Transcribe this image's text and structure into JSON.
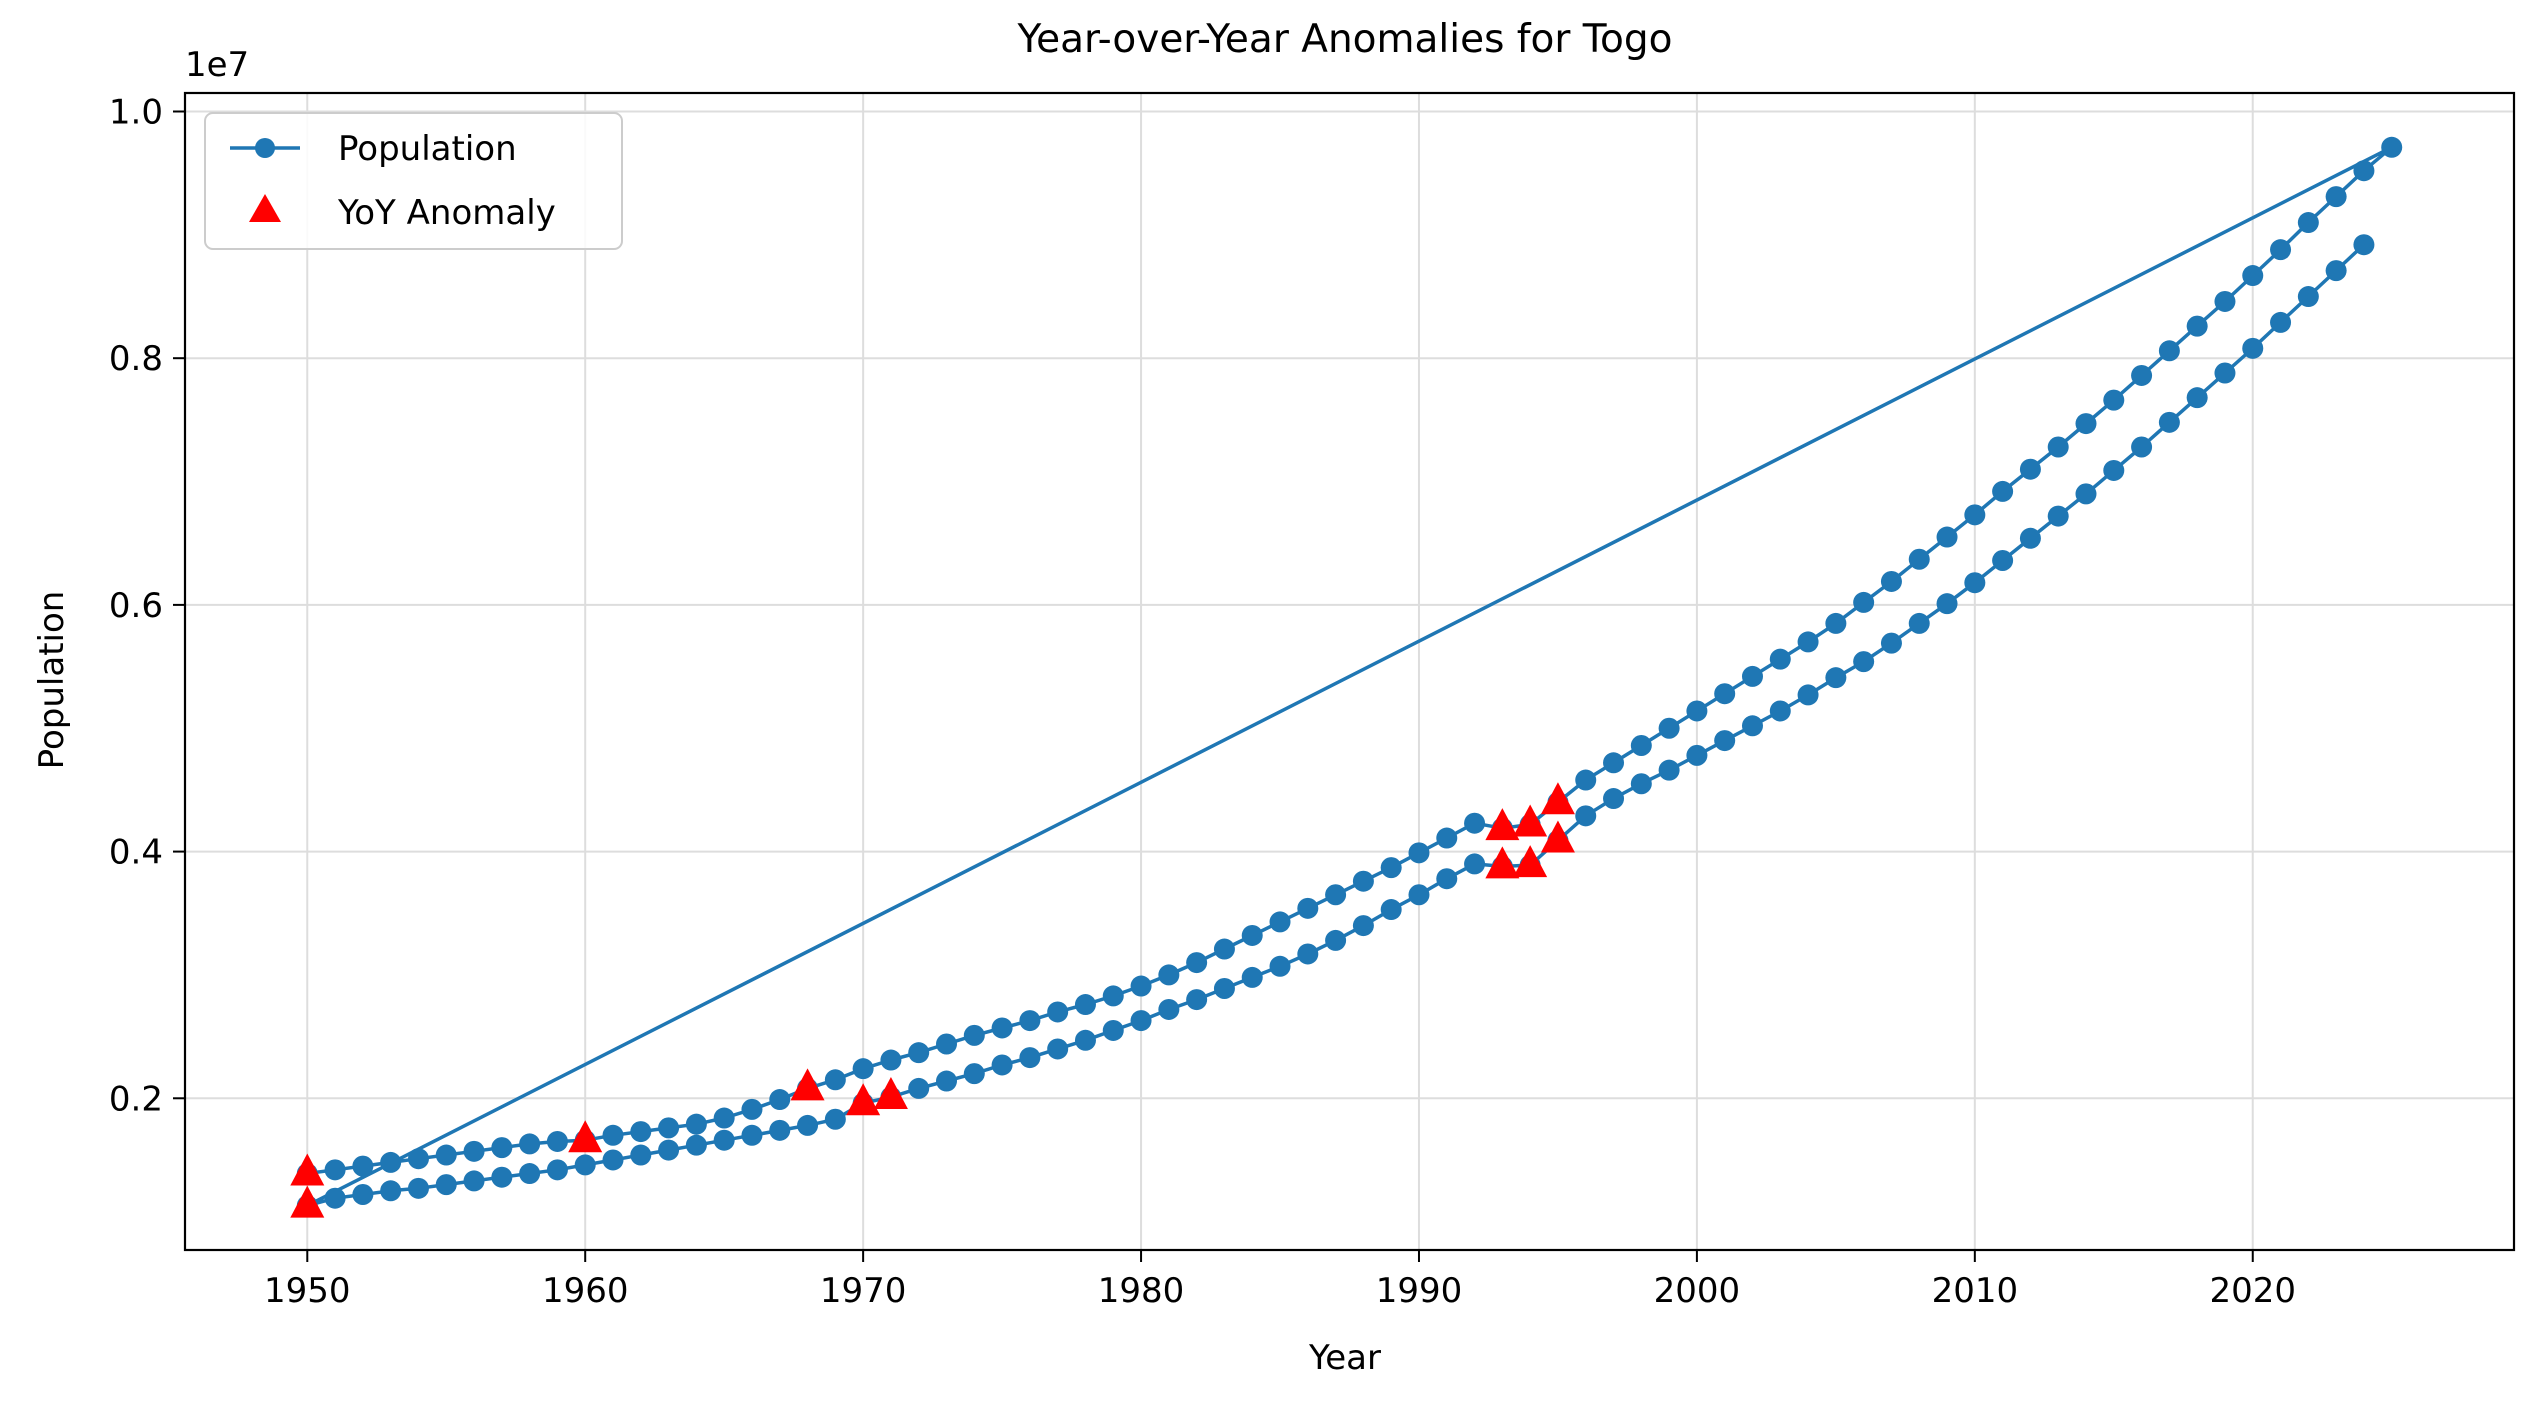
{
  "chart_data": {
    "type": "line",
    "title": "Year-over-Year Anomalies for Togo",
    "xlabel": "Year",
    "ylabel": "Population",
    "y_offset_label": "1e7",
    "xlim": [
      1945.6,
      2029.4
    ],
    "ylim": [
      770000,
      10150000
    ],
    "xticks": [
      1950,
      1960,
      1970,
      1980,
      1990,
      2000,
      2010,
      2020
    ],
    "yticks": [
      2000000,
      4000000,
      6000000,
      8000000,
      10000000
    ],
    "ytick_labels": [
      "0.2",
      "0.4",
      "0.6",
      "0.8",
      "1.0"
    ],
    "grid": true,
    "legend_position": "upper-left",
    "series": [
      {
        "name": "Population",
        "kind": "line-with-markers",
        "color": "#1f77b4",
        "x": [
          1950,
          1951,
          1952,
          1953,
          1954,
          1955,
          1956,
          1957,
          1958,
          1959,
          1960,
          1961,
          1962,
          1963,
          1964,
          1965,
          1966,
          1967,
          1968,
          1969,
          1970,
          1971,
          1972,
          1973,
          1974,
          1975,
          1976,
          1977,
          1978,
          1979,
          1980,
          1981,
          1982,
          1983,
          1984,
          1985,
          1986,
          1987,
          1988,
          1989,
          1990,
          1991,
          1992,
          1993,
          1994,
          1995,
          1996,
          1997,
          1998,
          1999,
          2000,
          2001,
          2002,
          2003,
          2004,
          2005,
          2006,
          2007,
          2008,
          2009,
          2010,
          2011,
          2012,
          2013,
          2014,
          2015,
          2016,
          2017,
          2018,
          2019,
          2020,
          2021,
          2022,
          2023,
          2024,
          2025,
          1950,
          1951,
          1952,
          1953,
          1954,
          1955,
          1956,
          1957,
          1958,
          1959,
          1960,
          1961,
          1962,
          1963,
          1964,
          1965,
          1966,
          1967,
          1968,
          1969,
          1970,
          1971,
          1972,
          1973,
          1974,
          1975,
          1976,
          1977,
          1978,
          1979,
          1980,
          1981,
          1982,
          1983,
          1984,
          1985,
          1986,
          1987,
          1988,
          1989,
          1990,
          1991,
          1992,
          1993,
          1994,
          1995,
          1996,
          1997,
          1998,
          1999,
          2000,
          2001,
          2002,
          2003,
          2004,
          2005,
          2006,
          2007,
          2008,
          2009,
          2010,
          2011,
          2012,
          2013,
          2014,
          2015,
          2016,
          2017,
          2018,
          2019,
          2020,
          2021,
          2022,
          2023,
          2024
        ],
        "y": [
          1390000,
          1420000,
          1450000,
          1480000,
          1510000,
          1540000,
          1570000,
          1600000,
          1630000,
          1650000,
          1660000,
          1700000,
          1730000,
          1760000,
          1790000,
          1840000,
          1910000,
          1990000,
          2080000,
          2150000,
          2240000,
          2310000,
          2370000,
          2440000,
          2510000,
          2570000,
          2630000,
          2700000,
          2760000,
          2830000,
          2910000,
          3000000,
          3100000,
          3210000,
          3320000,
          3430000,
          3540000,
          3650000,
          3760000,
          3870000,
          3990000,
          4110000,
          4230000,
          4190000,
          4220000,
          4400000,
          4580000,
          4720000,
          4860000,
          5000000,
          5140000,
          5280000,
          5420000,
          5560000,
          5700000,
          5850000,
          6020000,
          6190000,
          6370000,
          6550000,
          6730000,
          6920000,
          7100000,
          7280000,
          7470000,
          7660000,
          7860000,
          8060000,
          8260000,
          8460000,
          8670000,
          8880000,
          9100000,
          9310000,
          9520000,
          9710000,
          1130000,
          1190000,
          1220000,
          1250000,
          1270000,
          1300000,
          1330000,
          1360000,
          1390000,
          1420000,
          1460000,
          1500000,
          1540000,
          1580000,
          1620000,
          1660000,
          1700000,
          1740000,
          1780000,
          1830000,
          1960000,
          2010000,
          2080000,
          2140000,
          2200000,
          2270000,
          2330000,
          2400000,
          2470000,
          2550000,
          2630000,
          2720000,
          2800000,
          2890000,
          2980000,
          3070000,
          3170000,
          3280000,
          3400000,
          3530000,
          3650000,
          3780000,
          3900000,
          3880000,
          3890000,
          4090000,
          4290000,
          4430000,
          4550000,
          4660000,
          4780000,
          4900000,
          5020000,
          5140000,
          5270000,
          5410000,
          5540000,
          5690000,
          5850000,
          6010000,
          6180000,
          6360000,
          6540000,
          6720000,
          6900000,
          7090000,
          7280000,
          7480000,
          7680000,
          7880000,
          8080000,
          8290000,
          8500000,
          8710000,
          8920000
        ]
      },
      {
        "name": "YoY Anomaly",
        "kind": "scatter-triangle",
        "color": "#ff0000",
        "x": [
          1950,
          1950,
          1960,
          1968,
          1970,
          1971,
          1993,
          1993,
          1994,
          1994,
          1995,
          1995
        ],
        "y": [
          1390000,
          1130000,
          1660000,
          2080000,
          1960000,
          2010000,
          4190000,
          3880000,
          4220000,
          3890000,
          4400000,
          4090000
        ]
      }
    ]
  }
}
